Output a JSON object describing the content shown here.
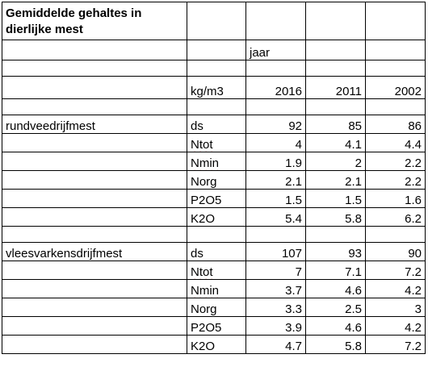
{
  "title": "Gemiddelde gehaltes in dierlijke mest",
  "header": {
    "jaar_label": "jaar",
    "unit_label": "kg/m3",
    "years": [
      "2016",
      "2011",
      "2002"
    ]
  },
  "groups": [
    {
      "name": "rundveedrijfmest",
      "rows": [
        {
          "param": "ds",
          "values": [
            "92",
            "85",
            "86"
          ]
        },
        {
          "param": "Ntot",
          "values": [
            "4",
            "4.1",
            "4.4"
          ]
        },
        {
          "param": "Nmin",
          "values": [
            "1.9",
            "2",
            "2.2"
          ]
        },
        {
          "param": "Norg",
          "values": [
            "2.1",
            "2.1",
            "2.2"
          ]
        },
        {
          "param": "P2O5",
          "values": [
            "1.5",
            "1.5",
            "1.6"
          ]
        },
        {
          "param": "K2O",
          "values": [
            "5.4",
            "5.8",
            "6.2"
          ]
        }
      ]
    },
    {
      "name": "vleesvarkensdrijfmest",
      "rows": [
        {
          "param": "ds",
          "values": [
            "107",
            "93",
            "90"
          ]
        },
        {
          "param": "Ntot",
          "values": [
            "7",
            "7.1",
            "7.2"
          ]
        },
        {
          "param": "Nmin",
          "values": [
            "3.7",
            "4.6",
            "4.2"
          ]
        },
        {
          "param": "Norg",
          "values": [
            "3.3",
            "2.5",
            "3"
          ]
        },
        {
          "param": "P2O5",
          "values": [
            "3.9",
            "4.6",
            "4.2"
          ]
        },
        {
          "param": "K2O",
          "values": [
            "4.7",
            "5.8",
            "7.2"
          ]
        }
      ]
    }
  ]
}
